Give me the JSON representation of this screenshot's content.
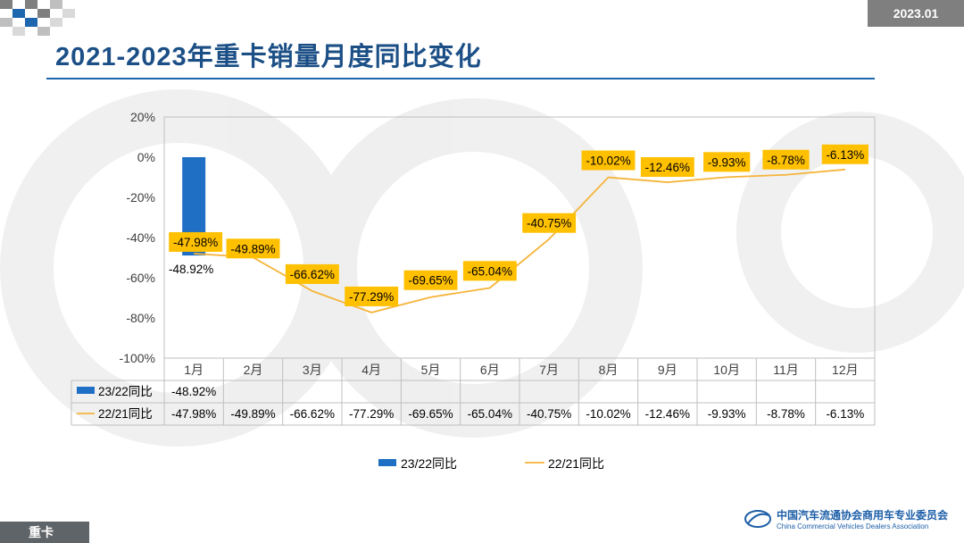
{
  "header": {
    "date": "2023.01",
    "title": "2021-2023年重卡销量月度同比变化"
  },
  "footer": {
    "tab": "重卡",
    "org_cn": "中国汽车流通协会商用车专业委员会",
    "org_en": "China Commercial Vehicles Dealers Association"
  },
  "colors": {
    "title": "#1b4f86",
    "bar": "#1f6fc5",
    "line": "#f5b43a",
    "label_bg": "#ffc000"
  },
  "chart_data": {
    "type": "bar+line",
    "categories": [
      "1月",
      "2月",
      "3月",
      "4月",
      "5月",
      "6月",
      "7月",
      "8月",
      "9月",
      "10月",
      "11月",
      "12月"
    ],
    "y_ticks": [
      "20%",
      "0%",
      "-20%",
      "-40%",
      "-60%",
      "-80%",
      "-100%"
    ],
    "ylim": [
      -100,
      20
    ],
    "series": [
      {
        "name": "23/22同比",
        "type": "bar",
        "values": [
          -48.92,
          null,
          null,
          null,
          null,
          null,
          null,
          null,
          null,
          null,
          null,
          null
        ],
        "labels": [
          "-48.92%",
          "",
          "",
          "",
          "",
          "",
          "",
          "",
          "",
          "",
          "",
          ""
        ]
      },
      {
        "name": "22/21同比",
        "type": "line",
        "values": [
          -47.98,
          -49.89,
          -66.62,
          -77.29,
          -69.65,
          -65.04,
          -40.75,
          -10.02,
          -12.46,
          -9.93,
          -8.78,
          -6.13
        ],
        "labels": [
          "-47.98%",
          "-49.89%",
          "-66.62%",
          "-77.29%",
          "-69.65%",
          "-65.04%",
          "-40.75%",
          "-10.02%",
          "-12.46%",
          "-9.93%",
          "-8.78%",
          "-6.13%"
        ]
      }
    ],
    "legend": [
      "23/22同比",
      "22/21同比"
    ]
  }
}
